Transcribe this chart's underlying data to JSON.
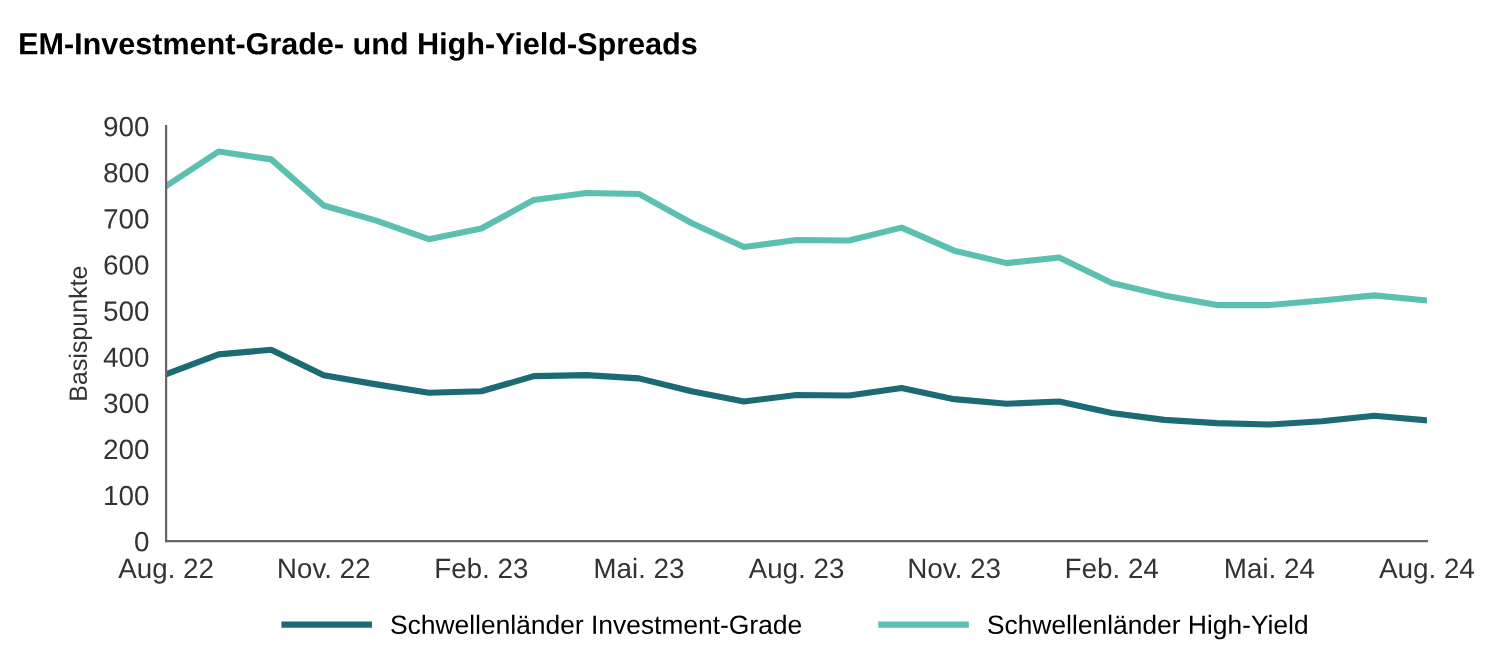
{
  "chart_data": {
    "type": "line",
    "title": "EM-Investment-Grade- und High-Yield-Spreads",
    "ylabel": "Basispunkte",
    "categories": [
      "Aug. 22",
      null,
      null,
      "Nov. 22",
      null,
      null,
      "Feb. 23",
      null,
      null,
      "Mai. 23",
      null,
      null,
      "Aug. 23",
      null,
      null,
      "Nov. 23",
      null,
      null,
      "Feb. 24",
      null,
      null,
      "Mai. 24",
      null,
      null,
      "Aug. 24"
    ],
    "series": [
      {
        "name": "Schwellenländer Investment-Grade",
        "color": "#1b6b74",
        "values": [
          362,
          405,
          415,
          360,
          340,
          322,
          325,
          358,
          360,
          353,
          325,
          303,
          317,
          316,
          332,
          308,
          298,
          303,
          278,
          263,
          256,
          253,
          260,
          272,
          262
        ]
      },
      {
        "name": "Schwellenländer High-Yield",
        "color": "#5cc0b1",
        "values": [
          770,
          845,
          828,
          728,
          695,
          655,
          678,
          740,
          755,
          753,
          690,
          638,
          653,
          652,
          680,
          630,
          603,
          615,
          560,
          533,
          512,
          512,
          522,
          533,
          522
        ]
      }
    ],
    "ylim": [
      0,
      900
    ],
    "yticks": [
      0,
      100,
      200,
      300,
      400,
      500,
      600,
      700,
      800,
      900
    ],
    "grid": false,
    "legend": "bottom",
    "marker": "none",
    "line_style": "solid"
  }
}
